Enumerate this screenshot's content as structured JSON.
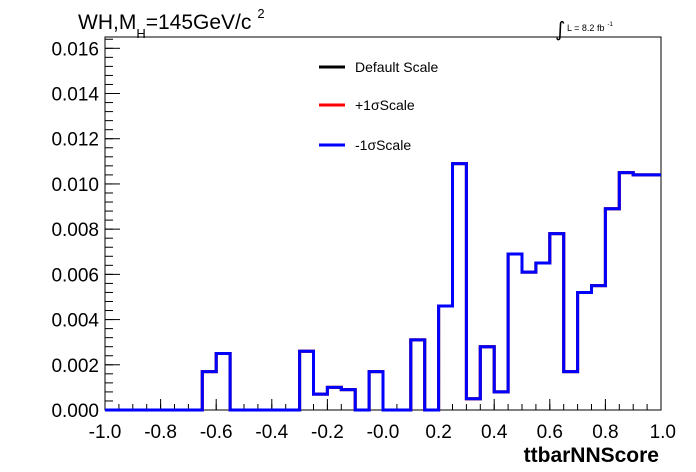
{
  "chart_data": {
    "type": "line",
    "subtype": "step-histogram",
    "title": {
      "main": "WH,M",
      "subscript": "H",
      "rest": "=145GeV/c",
      "superscript": "2"
    },
    "luminosity": {
      "symbol": "∫",
      "text": "L = 8.2 fb",
      "superscript": "-1"
    },
    "xlabel": "ttbarNNScore",
    "ylabel": "",
    "xlim": [
      -1.0,
      1.0
    ],
    "ylim": [
      0.0,
      0.0165
    ],
    "x_ticks": [
      "-1.0",
      "-0.8",
      "-0.6",
      "-0.4",
      "-0.2",
      "-0.0",
      "0.2",
      "0.4",
      "0.6",
      "0.8",
      "1.0"
    ],
    "y_ticks": [
      "0.000",
      "0.002",
      "0.004",
      "0.006",
      "0.008",
      "0.010",
      "0.012",
      "0.014",
      "0.016"
    ],
    "grid": false,
    "legend_position": "top-center",
    "bin_edges": [
      -1.0,
      -0.95,
      -0.9,
      -0.85,
      -0.8,
      -0.75,
      -0.7,
      -0.65,
      -0.6,
      -0.55,
      -0.5,
      -0.45,
      -0.4,
      -0.35,
      -0.3,
      -0.25,
      -0.2,
      -0.15,
      -0.1,
      -0.05,
      0.0,
      0.05,
      0.1,
      0.15,
      0.2,
      0.25,
      0.3,
      0.35,
      0.4,
      0.45,
      0.5,
      0.55,
      0.6,
      0.65,
      0.7,
      0.75,
      0.8,
      0.85,
      0.9,
      0.95,
      1.0
    ],
    "series": [
      {
        "name": "Default Scale",
        "color": "#000000",
        "values": [
          0,
          0,
          0,
          0,
          0,
          0,
          0,
          0.0017,
          0.0025,
          0,
          0,
          0,
          0,
          0,
          0.0026,
          0.0007,
          0.001,
          0.0009,
          0,
          0.0017,
          0,
          0,
          0.0031,
          0,
          0.0046,
          0.0109,
          0.0005,
          0.0028,
          0.0008,
          0.0069,
          0.0061,
          0.0065,
          0.0078,
          0.0017,
          0.0052,
          0.0055,
          0.0089,
          0.0105,
          0.0104,
          0.0104
        ]
      },
      {
        "name": "+1σScale",
        "color": "#ff0000",
        "values": [
          0,
          0,
          0,
          0,
          0,
          0,
          0,
          0.0017,
          0.0025,
          0,
          0,
          0,
          0,
          0,
          0.0026,
          0.0007,
          0.001,
          0.0009,
          0,
          0.0017,
          0,
          0,
          0.0031,
          0,
          0.0046,
          0.0109,
          0.0005,
          0.0028,
          0.0008,
          0.0069,
          0.0061,
          0.0065,
          0.0078,
          0.0017,
          0.0052,
          0.0055,
          0.0089,
          0.0105,
          0.0104,
          0.0104
        ]
      },
      {
        "name": "-1σScale",
        "color": "#0000ff",
        "values": [
          0,
          0,
          0,
          0,
          0,
          0,
          0,
          0.0017,
          0.0025,
          0,
          0,
          0,
          0,
          0,
          0.0026,
          0.0007,
          0.001,
          0.0009,
          0,
          0.0017,
          0,
          0,
          0.0031,
          0,
          0.0046,
          0.0109,
          0.0005,
          0.0028,
          0.0008,
          0.0069,
          0.0061,
          0.0065,
          0.0078,
          0.0017,
          0.0052,
          0.0055,
          0.0089,
          0.0105,
          0.0104,
          0.0104
        ]
      }
    ]
  }
}
